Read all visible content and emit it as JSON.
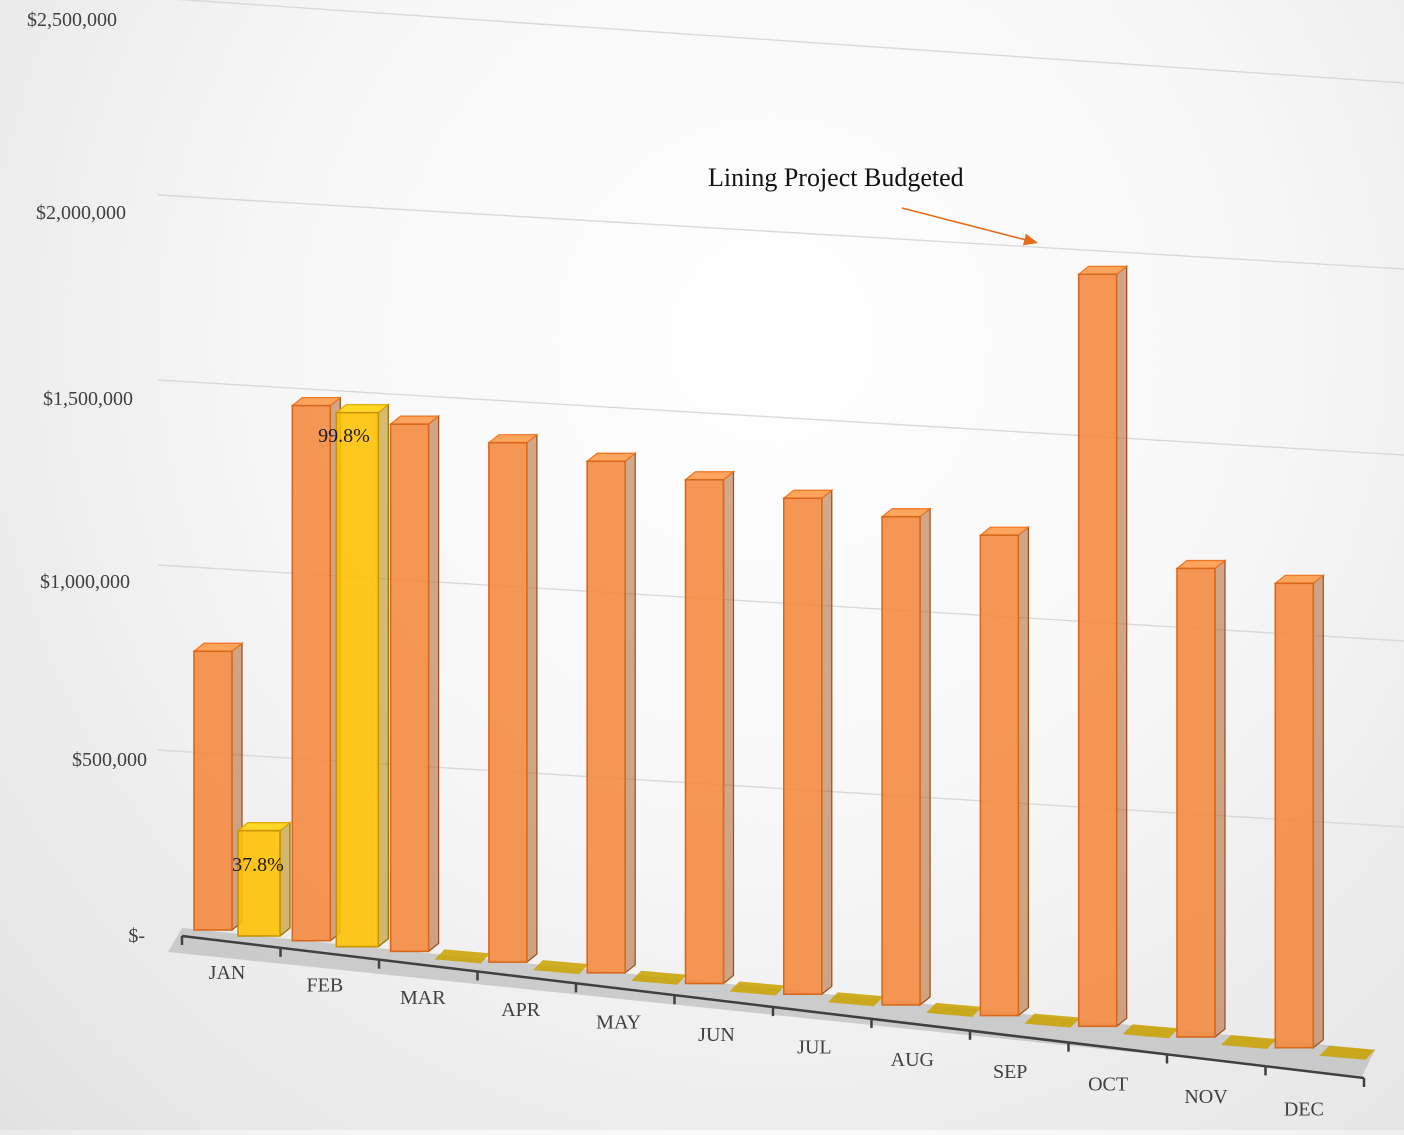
{
  "chart_data": {
    "type": "bar",
    "title": "",
    "xlabel": "",
    "ylabel": "",
    "ylim": [
      0,
      2500000
    ],
    "y_ticks": [
      {
        "value": 0,
        "label": "$-"
      },
      {
        "value": 500000,
        "label": "$500,000"
      },
      {
        "value": 1000000,
        "label": "$1,000,000"
      },
      {
        "value": 1500000,
        "label": "$1,500,000"
      },
      {
        "value": 2000000,
        "label": "$2,000,000"
      },
      {
        "value": 2500000,
        "label": "$2,500,000"
      }
    ],
    "categories": [
      "JAN",
      "FEB",
      "MAR",
      "APR",
      "MAY",
      "JUN",
      "JUL",
      "AUG",
      "SEP",
      "OCT",
      "NOV",
      "DEC"
    ],
    "series": [
      {
        "values": [
          770000,
          1480000,
          1460000,
          1440000,
          1420000,
          1400000,
          1380000,
          1360000,
          1340000,
          2100000,
          1310000,
          1300000
        ],
        "color": "#f4883c"
      },
      {
        "values": [
          291000,
          1477000,
          0,
          0,
          0,
          0,
          0,
          0,
          0,
          0,
          0,
          0
        ],
        "color": "#ffc000"
      }
    ],
    "data_labels": [
      {
        "category": "JAN",
        "text": "37.8%"
      },
      {
        "category": "FEB",
        "text": "99.8%"
      }
    ],
    "annotation": {
      "text": "Lining Project Budgeted",
      "target_category": "OCT"
    },
    "grid": true,
    "legend": "none"
  }
}
